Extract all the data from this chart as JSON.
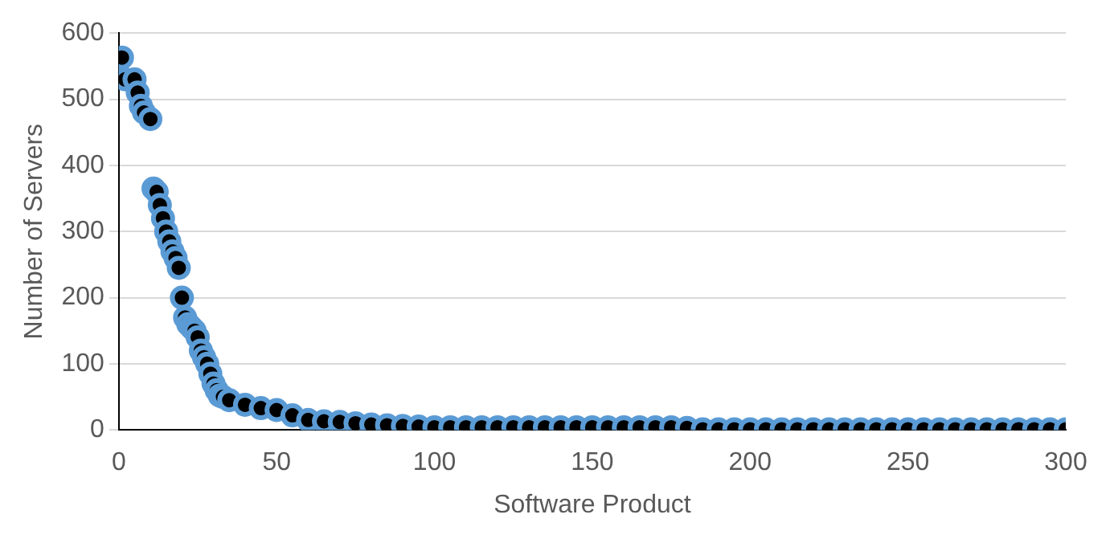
{
  "chart_data": {
    "type": "scatter",
    "xlabel": "Software Product",
    "ylabel": "Number of Servers",
    "xlim": [
      0,
      300
    ],
    "xticks": [
      0,
      50,
      100,
      150,
      200,
      250,
      300
    ],
    "ylim": [
      0,
      600
    ],
    "yticks": [
      0,
      100,
      200,
      300,
      400,
      500,
      600
    ],
    "grid": "y",
    "legend": false,
    "marker": "circle",
    "series": [
      {
        "color": "#5b9bd5",
        "x": [
          1,
          2,
          5,
          6,
          7,
          8,
          10,
          11,
          12,
          13,
          14,
          15,
          16,
          17,
          18,
          19,
          20,
          21,
          22,
          23,
          24,
          25,
          26,
          27,
          28,
          29,
          30,
          31,
          32,
          33,
          35,
          40,
          45,
          50,
          55,
          60,
          65,
          70,
          75,
          80,
          85,
          90,
          95,
          100,
          105,
          110,
          115,
          120,
          125,
          130,
          135,
          140,
          145,
          150,
          155,
          160,
          165,
          170,
          175,
          180,
          185,
          190,
          195,
          200,
          205,
          210,
          215,
          220,
          225,
          230,
          235,
          240,
          245,
          250,
          255,
          260,
          265,
          270,
          275,
          280,
          285,
          290,
          295,
          300
        ],
        "values": [
          563,
          530,
          530,
          510,
          490,
          480,
          470,
          365,
          360,
          340,
          320,
          300,
          285,
          270,
          260,
          245,
          200,
          170,
          160,
          155,
          150,
          140,
          120,
          110,
          100,
          85,
          70,
          60,
          52,
          50,
          45,
          38,
          33,
          30,
          22,
          15,
          13,
          12,
          10,
          8,
          7,
          6,
          5,
          4,
          4,
          4,
          4,
          4,
          4,
          4,
          4,
          4,
          4,
          4,
          4,
          4,
          4,
          4,
          4,
          3,
          1,
          1,
          1,
          1,
          1,
          1,
          1,
          1,
          1,
          1,
          1,
          1,
          1,
          1,
          1,
          1,
          1,
          1,
          1,
          1,
          1,
          1,
          1,
          1
        ]
      }
    ]
  }
}
